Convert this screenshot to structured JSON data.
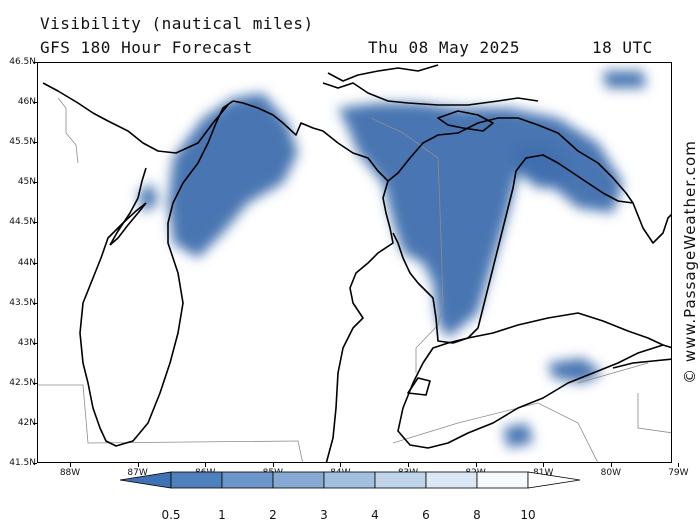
{
  "header": {
    "title": "Visibility (nautical miles)",
    "subtitle": "GFS 180 Hour Forecast",
    "date": "Thu 08 May 2025",
    "time": "18 UTC"
  },
  "axes": {
    "lat_labels": [
      "46.5N",
      "46N",
      "45.5N",
      "45N",
      "44.5N",
      "44N",
      "43.5N",
      "43N",
      "42.5N",
      "42N",
      "41.5N"
    ],
    "lon_labels": [
      "88W",
      "87W",
      "86W",
      "85W",
      "84W",
      "83W",
      "82W",
      "81W",
      "80W",
      "79W"
    ]
  },
  "watermark": "© www.PassageWeather.com",
  "legend": {
    "labels": [
      "0.5",
      "1",
      "2",
      "3",
      "4",
      "6",
      "8",
      "10"
    ],
    "colors": [
      "#3f72b2",
      "#4f80bd",
      "#6a96c9",
      "#86aad4",
      "#a2bfde",
      "#bfd3e9",
      "#dbe7f4",
      "#f5f9fd",
      "#ffffff"
    ]
  },
  "fog_color": "#3f6fae"
}
